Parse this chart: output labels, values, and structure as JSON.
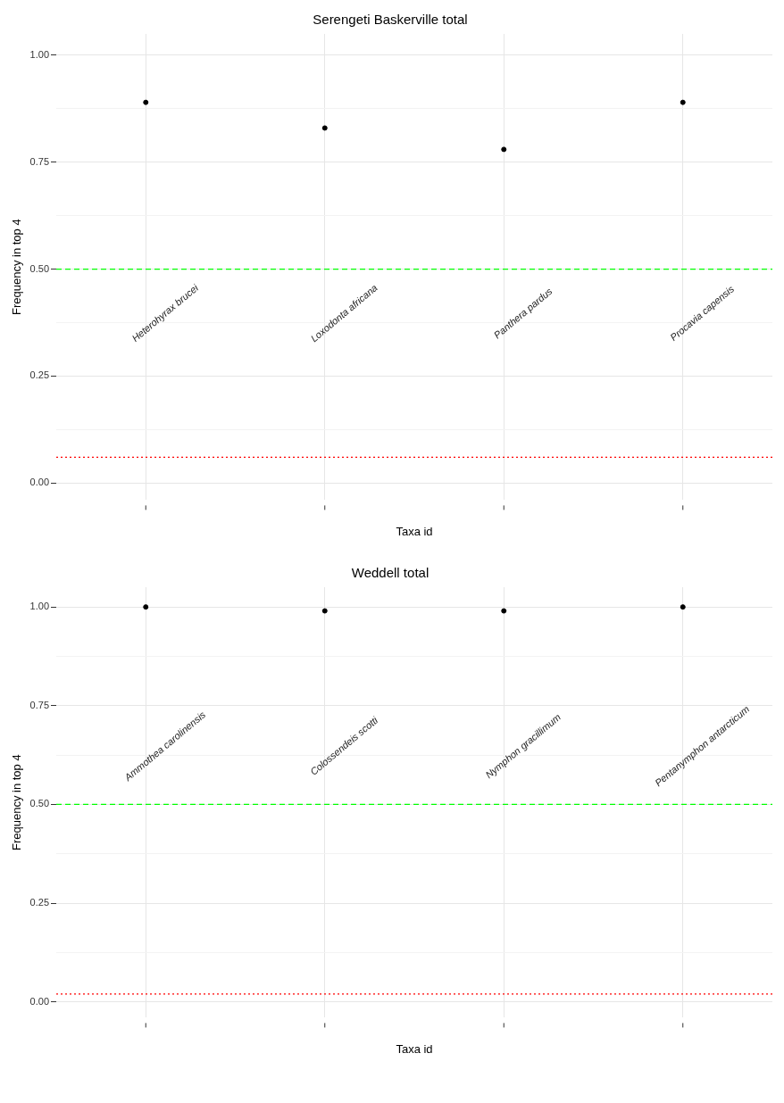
{
  "chart_data": [
    {
      "type": "scatter",
      "title": "Serengeti Baskerville total",
      "xlabel": "Taxa id",
      "ylabel": "Frequency in top 4",
      "categories": [
        "Heterohyrax brucei",
        "Loxodonta africana",
        "Panthera pardus",
        "Procavia capensis"
      ],
      "series": [
        {
          "color": "#000000",
          "values": [
            0.89,
            0.83,
            0.78,
            0.89
          ]
        }
      ],
      "ylim": [
        -0.04,
        1.05
      ],
      "yticks": [
        {
          "value": 0,
          "label": "0.00"
        },
        {
          "value": 0.125,
          "label": null
        },
        {
          "value": 0.25,
          "label": "0.25"
        },
        {
          "value": 0.375,
          "label": null
        },
        {
          "value": 0.5,
          "label": "0.50"
        },
        {
          "value": 0.625,
          "label": null
        },
        {
          "value": 0.75,
          "label": "0.75"
        },
        {
          "value": 0.875,
          "label": null
        },
        {
          "value": 1,
          "label": "1.00"
        }
      ],
      "ref_lines": [
        {
          "axis": "y",
          "value": 0.5,
          "color": "#00ff00",
          "line_style": "dashed"
        },
        {
          "axis": "y",
          "value": 0.06,
          "color": "#ff0000",
          "line_style": "dotted"
        }
      ],
      "grid": true,
      "legend": false,
      "marker": "circle",
      "tick_labels": "y"
    },
    {
      "type": "scatter",
      "title": "Weddell total",
      "xlabel": "Taxa id",
      "ylabel": "Frequency in top 4",
      "categories": [
        "Ammothea carolinensis",
        "Colossendeis scotti",
        "Nymphon gracillimum",
        "Pentanymphon antarcticum"
      ],
      "series": [
        {
          "color": "#000000",
          "values": [
            1.0,
            0.99,
            0.99,
            1.0
          ]
        }
      ],
      "ylim": [
        -0.04,
        1.05
      ],
      "yticks": [
        {
          "value": 0,
          "label": "0.00"
        },
        {
          "value": 0.125,
          "label": null
        },
        {
          "value": 0.25,
          "label": "0.25"
        },
        {
          "value": 0.375,
          "label": null
        },
        {
          "value": 0.5,
          "label": "0.50"
        },
        {
          "value": 0.625,
          "label": null
        },
        {
          "value": 0.75,
          "label": "0.75"
        },
        {
          "value": 0.875,
          "label": null
        },
        {
          "value": 1,
          "label": "1.00"
        }
      ],
      "ref_lines": [
        {
          "axis": "y",
          "value": 0.5,
          "color": "#00ff00",
          "line_style": "dashed"
        },
        {
          "axis": "y",
          "value": 0.02,
          "color": "#ff0000",
          "line_style": "dotted"
        }
      ],
      "grid": true,
      "legend": false,
      "marker": "circle",
      "tick_labels": "y"
    }
  ]
}
